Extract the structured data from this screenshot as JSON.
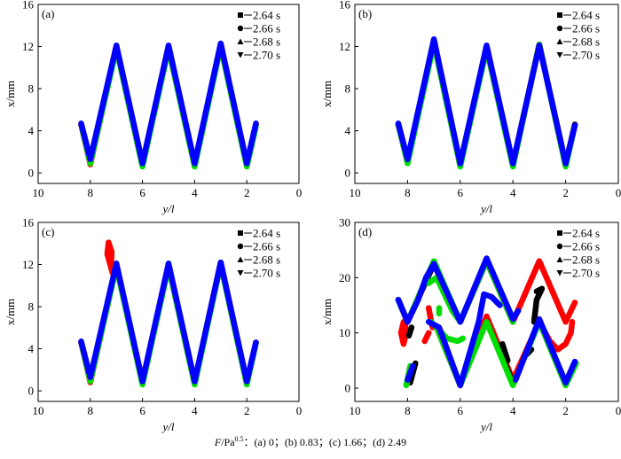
{
  "caption": {
    "prefix": "F",
    "unit": "/Pa",
    "exp": "0.5",
    "rest": "：(a) 0；(b) 0.83；(c) 1.66；(d) 2.49"
  },
  "legend": [
    {
      "label": "2.64 s",
      "marker": "square",
      "color": "#000000"
    },
    {
      "label": "2.66 s",
      "marker": "circle",
      "color": "#ff0000"
    },
    {
      "label": "2.68 s",
      "marker": "triangle-up",
      "color": "#00dd00"
    },
    {
      "label": "2.70 s",
      "marker": "triangle-down",
      "color": "#0000ff"
    }
  ],
  "chart_data": [
    {
      "type": "line",
      "panel_label": "(a)",
      "xlabel": "y/l",
      "ylabel": "x/mm",
      "xlim": [
        10,
        0
      ],
      "ylim": [
        -1,
        16
      ],
      "xticks": [
        "10",
        "8",
        "6",
        "4",
        "2",
        "0"
      ],
      "yticks": [
        "0",
        "4",
        "8",
        "12",
        "16"
      ],
      "series": [
        {
          "name": "2.66 s",
          "segments": [
            [
              [
                8.35,
                4.6
              ],
              [
                8,
                0.8
              ],
              [
                7,
                12
              ],
              [
                6,
                0.8
              ],
              [
                5,
                12
              ],
              [
                4,
                0.8
              ],
              [
                3,
                12.2
              ],
              [
                2,
                0.8
              ],
              [
                1.65,
                4.6
              ]
            ]
          ]
        },
        {
          "name": "2.64 s",
          "segments": [
            [
              [
                8.35,
                4.6
              ],
              [
                8,
                1
              ],
              [
                7,
                12
              ],
              [
                6,
                0.8
              ],
              [
                5,
                12
              ],
              [
                4,
                0.8
              ],
              [
                3,
                12.2
              ],
              [
                2,
                0.8
              ],
              [
                1.65,
                4.6
              ]
            ]
          ]
        },
        {
          "name": "2.68 s",
          "segments": [
            [
              [
                8.33,
                4.4
              ],
              [
                8,
                0.9
              ],
              [
                7,
                11.8
              ],
              [
                6,
                0.6
              ],
              [
                5,
                11.8
              ],
              [
                4,
                0.6
              ],
              [
                3,
                12
              ],
              [
                2,
                0.6
              ],
              [
                1.65,
                4.4
              ]
            ]
          ]
        },
        {
          "name": "2.70 s",
          "segments": [
            [
              [
                8.35,
                4.7
              ],
              [
                8,
                1.3
              ],
              [
                7,
                12.1
              ],
              [
                6,
                0.9
              ],
              [
                5,
                12.1
              ],
              [
                4,
                0.9
              ],
              [
                3,
                12.3
              ],
              [
                2,
                0.9
              ],
              [
                1.65,
                4.7
              ]
            ]
          ]
        }
      ]
    },
    {
      "type": "line",
      "panel_label": "(b)",
      "xlabel": "y/l",
      "ylabel": "x/mm",
      "xlim": [
        10,
        0
      ],
      "ylim": [
        -1,
        16
      ],
      "xticks": [
        "10",
        "8",
        "6",
        "4",
        "2",
        "0"
      ],
      "yticks": [
        "0",
        "4",
        "8",
        "12",
        "16"
      ],
      "series": [
        {
          "name": "2.66 s",
          "segments": [
            [
              [
                8.35,
                4.6
              ],
              [
                8,
                1
              ],
              [
                7,
                12.5
              ],
              [
                6,
                0.8
              ],
              [
                5,
                12
              ],
              [
                4,
                0.8
              ],
              [
                3,
                12.2
              ],
              [
                2,
                0.8
              ],
              [
                1.65,
                4.6
              ]
            ]
          ]
        },
        {
          "name": "2.64 s",
          "segments": [
            [
              [
                8.35,
                4.6
              ],
              [
                8,
                1
              ],
              [
                7,
                12.5
              ],
              [
                6,
                0.8
              ],
              [
                5,
                12
              ],
              [
                4,
                0.8
              ],
              [
                3,
                12.2
              ],
              [
                2,
                0.8
              ],
              [
                1.65,
                4.6
              ]
            ]
          ]
        },
        {
          "name": "2.68 s",
          "segments": [
            [
              [
                8.33,
                4.4
              ],
              [
                8,
                0.9
              ],
              [
                7,
                12.3
              ],
              [
                6,
                0.6
              ],
              [
                5,
                11.8
              ],
              [
                4,
                0.6
              ],
              [
                3,
                12.2
              ],
              [
                2,
                0.6
              ],
              [
                1.65,
                4.5
              ]
            ]
          ]
        },
        {
          "name": "2.70 s",
          "segments": [
            [
              [
                8.35,
                4.7
              ],
              [
                8,
                1.3
              ],
              [
                7,
                12.7
              ],
              [
                6,
                0.9
              ],
              [
                5,
                12.1
              ],
              [
                4,
                0.9
              ],
              [
                3,
                12.1
              ],
              [
                2,
                0.9
              ],
              [
                1.65,
                4.5
              ]
            ]
          ]
        }
      ]
    },
    {
      "type": "line",
      "panel_label": "(c)",
      "xlabel": "y/l",
      "ylabel": "x/mm",
      "xlim": [
        10,
        0
      ],
      "ylim": [
        -1,
        16
      ],
      "xticks": [
        "10",
        "8",
        "6",
        "4",
        "2",
        "0"
      ],
      "yticks": [
        "0",
        "4",
        "8",
        "12",
        "16"
      ],
      "series": [
        {
          "name": "2.66 s",
          "segments": [
            [
              [
                8.35,
                4.6
              ],
              [
                8,
                0.8
              ],
              [
                7,
                12
              ],
              [
                6,
                0.8
              ],
              [
                5,
                12
              ],
              [
                4,
                0.8
              ],
              [
                3,
                12.2
              ],
              [
                2,
                0.8
              ],
              [
                1.65,
                4.6
              ]
            ],
            [
              [
                7.15,
                11.2
              ],
              [
                7.35,
                13
              ],
              [
                7.3,
                14.1
              ],
              [
                7.18,
                13.2
              ],
              [
                7.2,
                11.8
              ]
            ]
          ]
        },
        {
          "name": "2.64 s",
          "segments": [
            [
              [
                8.35,
                4.6
              ],
              [
                8,
                1
              ],
              [
                7,
                12
              ],
              [
                6,
                0.8
              ],
              [
                5,
                12
              ],
              [
                4,
                0.8
              ],
              [
                3,
                12.2
              ],
              [
                2,
                0.8
              ],
              [
                1.65,
                4.6
              ]
            ]
          ]
        },
        {
          "name": "2.68 s",
          "segments": [
            [
              [
                8.33,
                4.4
              ],
              [
                8,
                0.9
              ],
              [
                7,
                11.8
              ],
              [
                6,
                0.6
              ],
              [
                5,
                11.8
              ],
              [
                4,
                0.6
              ],
              [
                3,
                12
              ],
              [
                2,
                0.6
              ],
              [
                1.65,
                4.5
              ]
            ]
          ]
        },
        {
          "name": "2.70 s",
          "segments": [
            [
              [
                8.35,
                4.7
              ],
              [
                8,
                1.3
              ],
              [
                7,
                12.1
              ],
              [
                6,
                0.9
              ],
              [
                5,
                12.1
              ],
              [
                4,
                0.9
              ],
              [
                3,
                12.2
              ],
              [
                2,
                0.9
              ],
              [
                1.65,
                4.6
              ]
            ]
          ]
        }
      ]
    },
    {
      "type": "line",
      "panel_label": "(d)",
      "xlabel": "y/l",
      "ylabel": "x/mm",
      "xlim": [
        10,
        0
      ],
      "ylim": [
        -2.4,
        30
      ],
      "xticks": [
        "10",
        "8",
        "6",
        "4",
        "2",
        "0"
      ],
      "yticks": [
        "0",
        "10",
        "20",
        "30"
      ],
      "series": [
        {
          "name": "2.66 s",
          "segments": [
            [
              [
                8.35,
                16
              ],
              [
                8,
                12
              ],
              [
                7,
                22.5
              ],
              [
                6,
                12
              ],
              [
                5,
                23
              ],
              [
                4,
                12
              ],
              [
                3,
                23
              ],
              [
                2,
                12
              ],
              [
                1.65,
                15.5
              ]
            ],
            [
              [
                8.15,
                12
              ],
              [
                8.25,
                10
              ],
              [
                8.15,
                8
              ],
              [
                8.05,
                10
              ],
              [
                8.1,
                12
              ]
            ],
            [
              [
                7.2,
                14.5
              ],
              [
                7.1,
                12
              ],
              [
                7.05,
                11
              ]
            ],
            [
              [
                7.35,
                8.5
              ],
              [
                7.2,
                10
              ]
            ],
            [
              [
                6.9,
                11
              ],
              [
                6,
                0.5
              ],
              [
                5,
                13
              ],
              [
                4,
                1.5
              ],
              [
                3,
                12
              ],
              [
                2.6,
                8.5
              ],
              [
                2.3,
                7
              ],
              [
                2,
                8
              ],
              [
                1.8,
                10
              ],
              [
                1.75,
                12
              ]
            ]
          ]
        },
        {
          "name": "2.64 s",
          "segments": [
            [
              [
                8.35,
                16
              ],
              [
                8,
                12
              ],
              [
                7,
                22.5
              ],
              [
                6,
                12
              ],
              [
                5,
                23
              ],
              [
                4,
                12
              ]
            ],
            [
              [
                3.2,
                12
              ],
              [
                3.1,
                16
              ],
              [
                2.9,
                18
              ],
              [
                3.1,
                17.5
              ]
            ],
            [
              [
                7.95,
                9.5
              ],
              [
                7.85,
                11
              ]
            ],
            [
              [
                4.4,
                8
              ],
              [
                4.2,
                5
              ]
            ],
            [
              [
                7.7,
                4.5
              ],
              [
                7.9,
                1
              ]
            ],
            [
              [
                5,
                12
              ],
              [
                4,
                1
              ]
            ],
            [
              [
                3.5,
                6
              ],
              [
                3.3,
                7
              ]
            ]
          ]
        },
        {
          "name": "2.68 s",
          "segments": [
            [
              [
                8.35,
                16
              ],
              [
                8,
                12
              ],
              [
                7,
                23
              ],
              [
                6,
                12
              ],
              [
                5,
                23
              ],
              [
                4,
                12
              ]
            ],
            [
              [
                7.2,
                19
              ],
              [
                6.9,
                20
              ],
              [
                6.5,
                16
              ],
              [
                6.3,
                14
              ],
              [
                6,
                12
              ]
            ],
            [
              [
                7.1,
                12
              ],
              [
                6.5,
                9
              ],
              [
                6.1,
                8.5
              ],
              [
                5.9,
                9
              ]
            ],
            [
              [
                8.05,
                0.5
              ],
              [
                7.9,
                4
              ]
            ],
            [
              [
                6.8,
                13.5
              ],
              [
                6.8,
                14.5
              ]
            ],
            [
              [
                6.9,
                11
              ],
              [
                6,
                0.5
              ],
              [
                5,
                12
              ],
              [
                4,
                0.5
              ],
              [
                3,
                12
              ],
              [
                2,
                0.5
              ],
              [
                1.6,
                4.5
              ]
            ]
          ]
        },
        {
          "name": "2.70 s",
          "segments": [
            [
              [
                8.35,
                16
              ],
              [
                8,
                12
              ],
              [
                7.6,
                16
              ],
              [
                7.3,
                20
              ],
              [
                7,
                22.5
              ],
              [
                6,
                12
              ],
              [
                5,
                23.5
              ],
              [
                4,
                12.5
              ],
              [
                3.8,
                14
              ]
            ],
            [
              [
                7.2,
                12
              ],
              [
                6.8,
                11
              ],
              [
                6,
                0.5
              ],
              [
                5.3,
                12
              ],
              [
                5.1,
                17
              ],
              [
                4.8,
                16.5
              ],
              [
                4.5,
                15
              ]
            ],
            [
              [
                3.9,
                1.5
              ],
              [
                3,
                12.5
              ],
              [
                2,
                1
              ],
              [
                1.65,
                4.8
              ]
            ],
            [
              [
                8,
                1.5
              ],
              [
                7.8,
                4
              ]
            ]
          ]
        }
      ]
    }
  ]
}
